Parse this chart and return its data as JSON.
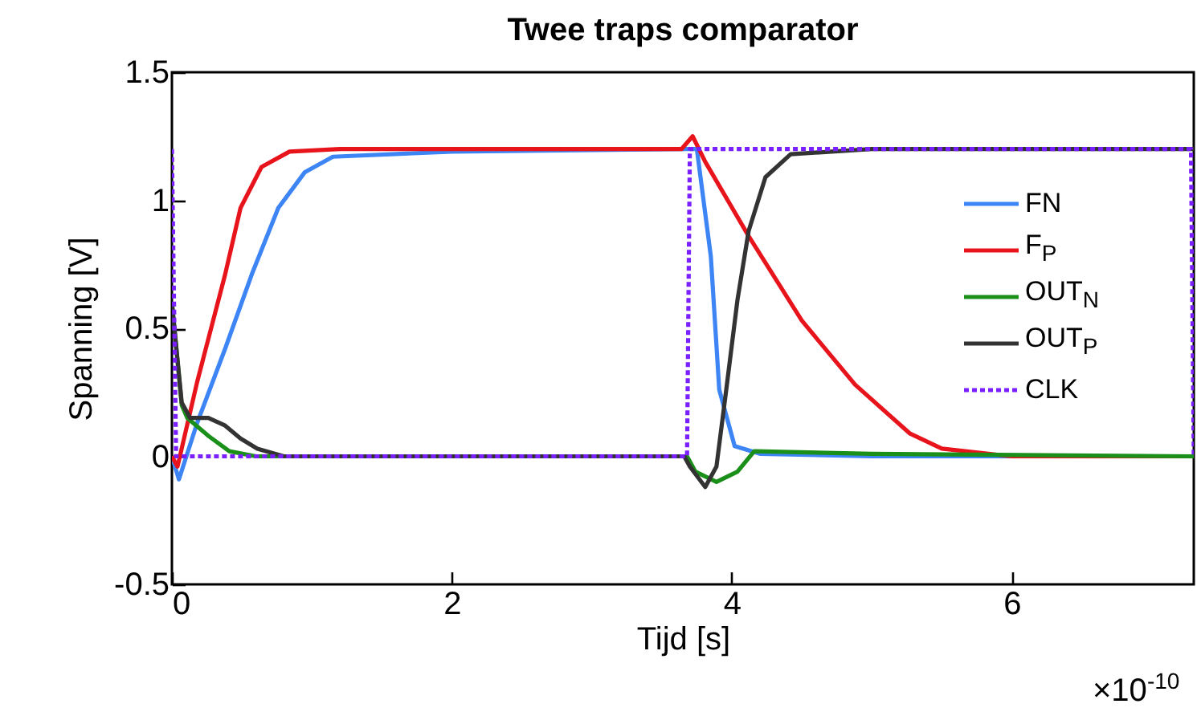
{
  "chart_data": {
    "type": "line",
    "title": "Twee traps comparator",
    "xlabel": "Tijd [s]",
    "ylabel": "Spanning [V]",
    "annotations": [
      "×10$^{-10}$"
    ],
    "xlim": [
      0,
      7.3
    ],
    "xticks": [
      0,
      2,
      4,
      6
    ],
    "ylim": [
      -0.5,
      1.5
    ],
    "yticks": [
      -0.5,
      0,
      0.5,
      1,
      1.5
    ],
    "grid": false,
    "legend": "right",
    "marker": "none",
    "series": [
      {
        "name": "FN",
        "color": "#3d84f5",
        "line_style": "solid",
        "x": [
          0,
          0.05,
          0.18,
          0.38,
          0.57,
          0.76,
          0.95,
          1.15,
          2,
          3.68,
          3.75,
          3.85,
          3.91,
          4.02,
          4.2,
          5,
          7.3
        ],
        "values": [
          0,
          -0.09,
          0.13,
          0.42,
          0.71,
          0.97,
          1.11,
          1.17,
          1.19,
          1.2,
          1.2,
          0.78,
          0.26,
          0.04,
          0.01,
          0,
          0
        ]
      },
      {
        "name": "F$_{P}$",
        "color": "#e8141c",
        "line_style": "solid",
        "x": [
          0,
          0.04,
          0.18,
          0.38,
          0.49,
          0.64,
          0.84,
          1.2,
          3.64,
          3.72,
          3.81,
          4.12,
          4.5,
          4.88,
          5.27,
          5.5,
          6,
          7.3
        ],
        "values": [
          0,
          -0.04,
          0.29,
          0.71,
          0.97,
          1.13,
          1.19,
          1.2,
          1.2,
          1.25,
          1.15,
          0.86,
          0.53,
          0.28,
          0.09,
          0.03,
          0,
          0
        ]
      },
      {
        "name": "OUT$_{N}$",
        "color": "#1a8f1a",
        "line_style": "solid",
        "x": [
          0,
          0.07,
          0.11,
          0.26,
          0.41,
          0.6,
          3.68,
          3.74,
          3.89,
          4.04,
          4.16,
          5,
          7.3
        ],
        "values": [
          0.6,
          0.2,
          0.15,
          0.08,
          0.02,
          0,
          0,
          -0.06,
          -0.1,
          -0.06,
          0.02,
          0.01,
          0
        ]
      },
      {
        "name": "OUT$_{P}$",
        "color": "#333333",
        "line_style": "solid",
        "x": [
          0,
          0.07,
          0.13,
          0.26,
          0.38,
          0.49,
          0.61,
          0.8,
          3.66,
          3.7,
          3.81,
          3.89,
          3.96,
          4.04,
          4.12,
          4.24,
          4.42,
          5,
          7.3
        ],
        "values": [
          0.6,
          0.21,
          0.15,
          0.15,
          0.12,
          0.07,
          0.03,
          0,
          0,
          -0.04,
          -0.12,
          -0.04,
          0.26,
          0.61,
          0.88,
          1.09,
          1.18,
          1.2,
          1.2
        ]
      },
      {
        "name": "CLK",
        "color": "#7a1fff",
        "line_style": "dotted",
        "x": [
          0,
          0.03,
          3.68,
          3.7,
          7.28,
          7.3
        ],
        "values": [
          1.2,
          0,
          0,
          1.2,
          1.2,
          0
        ]
      }
    ]
  }
}
